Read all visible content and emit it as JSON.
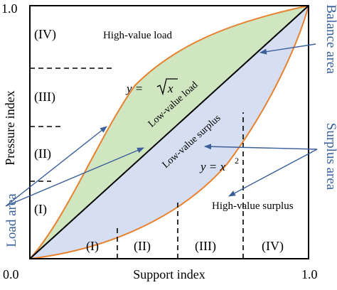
{
  "axes": {
    "origin": "0.0",
    "x_max": "1.0",
    "y_max": "1.0",
    "xlabel": "Support index",
    "ylabel": "Pressure index"
  },
  "curves": {
    "upper": {
      "equation_prefix": "y = ",
      "equation_radicand": "x"
    },
    "lower": {
      "equation_prefix": "y = x",
      "equation_exponent": "2"
    }
  },
  "regions": {
    "high_value_load": "High-value load",
    "low_value_load": "Low-value load",
    "low_value_surplus": "Low-value surplus",
    "high_value_surplus": "High-value surplus"
  },
  "pressure_levels": [
    "(IV)",
    "(III)",
    "(II)",
    "(I)"
  ],
  "support_levels": [
    "(I)",
    "(II)",
    "(III)",
    "(IV)"
  ],
  "side_labels": {
    "load_area": "Load area",
    "balance_area": "Balance area",
    "surplus_area": "Surplus area"
  },
  "colors": {
    "load_fill": "#cfe6c0",
    "surplus_fill": "#d6dff2",
    "curve": "#e8822e",
    "arrow": "#3a5f9a",
    "area_label": "#3a5f9a"
  }
}
